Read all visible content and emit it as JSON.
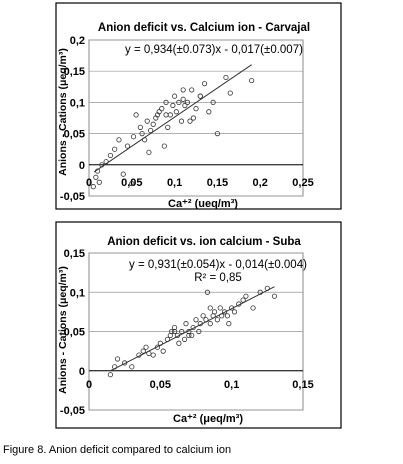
{
  "caption": "Figure 8. Anion deficit compared to calcium ion",
  "chart_data": [
    {
      "type": "scatter",
      "title": "Anion deficit vs. Calcium ion - Carvajal",
      "equation": "y = 0,934(±0.073)x - 0,017(±0.007)",
      "r2": "",
      "xlabel": "Ca⁺² (ueq/m³)",
      "ylabel": "Anions - Cations (μeq/m³)",
      "xlim": [
        0,
        0.25
      ],
      "ylim": [
        -0.05,
        0.2
      ],
      "xticks": [
        0,
        0.05,
        0.1,
        0.15,
        0.2,
        0.25
      ],
      "yticks": [
        -0.05,
        0,
        0.05,
        0.1,
        0.15,
        0.2
      ],
      "xtick_labels": [
        "0",
        "0,05",
        "0,1",
        "0,15",
        "0,2",
        "0,25"
      ],
      "ytick_labels": [
        "-0,05",
        "0",
        "0,05",
        "0,1",
        "0,15",
        "0,2"
      ],
      "grid": "horizontal",
      "trendline": {
        "slope": 0.934,
        "intercept": -0.017,
        "x_range": [
          0.006,
          0.19
        ]
      },
      "x": [
        0.005,
        0.008,
        0.01,
        0.012,
        0.015,
        0.02,
        0.025,
        0.03,
        0.035,
        0.04,
        0.045,
        0.05,
        0.052,
        0.055,
        0.06,
        0.062,
        0.065,
        0.068,
        0.07,
        0.072,
        0.075,
        0.078,
        0.08,
        0.082,
        0.085,
        0.088,
        0.09,
        0.092,
        0.095,
        0.098,
        0.1,
        0.102,
        0.105,
        0.108,
        0.11,
        0.112,
        0.115,
        0.118,
        0.12,
        0.122,
        0.125,
        0.13,
        0.135,
        0.14,
        0.145,
        0.15,
        0.16,
        0.165,
        0.19,
        0.09,
        0.11,
        0.13
      ],
      "y": [
        -0.035,
        -0.02,
        -0.01,
        -0.028,
        0.0,
        0.005,
        0.015,
        0.025,
        0.04,
        -0.015,
        0.03,
        -0.03,
        0.045,
        0.08,
        0.06,
        0.05,
        0.04,
        0.07,
        0.02,
        0.055,
        0.065,
        0.075,
        0.08,
        0.085,
        0.09,
        0.03,
        0.1,
        0.06,
        0.08,
        0.095,
        0.11,
        0.085,
        0.1,
        0.07,
        0.12,
        0.095,
        0.1,
        0.07,
        0.12,
        0.075,
        0.09,
        0.11,
        0.13,
        0.085,
        0.1,
        0.05,
        0.14,
        0.115,
        0.135,
        0.08,
        0.105,
        0.11
      ]
    },
    {
      "type": "scatter",
      "title": "Anion deficit vs. ion calcium - Suba",
      "equation": "y = 0,931(±0.054)x - 0,014(±0.004)",
      "r2": "R² = 0,85",
      "xlabel": "Ca⁺² (μeq/m³)",
      "ylabel": "Anions - Cations (μeq/m³)",
      "xlim": [
        0,
        0.15
      ],
      "ylim": [
        -0.05,
        0.15
      ],
      "xticks": [
        0,
        0.05,
        0.1,
        0.15
      ],
      "yticks": [
        -0.05,
        0,
        0.05,
        0.1,
        0.15
      ],
      "xtick_labels": [
        "0",
        "0,05",
        "0,1",
        "0,15"
      ],
      "ytick_labels": [
        "-0,05",
        "0",
        "0,05",
        "0,1",
        "0,15"
      ],
      "grid": "horizontal",
      "trendline": {
        "slope": 0.931,
        "intercept": -0.014,
        "x_range": [
          0.015,
          0.13
        ]
      },
      "x": [
        0.015,
        0.018,
        0.02,
        0.025,
        0.03,
        0.035,
        0.038,
        0.04,
        0.042,
        0.045,
        0.048,
        0.05,
        0.052,
        0.055,
        0.057,
        0.058,
        0.06,
        0.062,
        0.063,
        0.065,
        0.067,
        0.068,
        0.07,
        0.072,
        0.073,
        0.075,
        0.077,
        0.078,
        0.08,
        0.082,
        0.083,
        0.085,
        0.087,
        0.088,
        0.09,
        0.092,
        0.093,
        0.095,
        0.097,
        0.098,
        0.1,
        0.102,
        0.105,
        0.108,
        0.11,
        0.115,
        0.12,
        0.125,
        0.13,
        0.06,
        0.07,
        0.085
      ],
      "y": [
        -0.005,
        0.005,
        0.015,
        0.01,
        0.005,
        0.02,
        0.025,
        0.03,
        0.022,
        0.02,
        0.03,
        0.035,
        0.025,
        0.04,
        0.045,
        0.05,
        0.055,
        0.045,
        0.035,
        0.05,
        0.04,
        0.06,
        0.05,
        0.045,
        0.055,
        0.065,
        0.05,
        0.06,
        0.07,
        0.065,
        0.1,
        0.06,
        0.07,
        0.075,
        0.065,
        0.08,
        0.07,
        0.075,
        0.07,
        0.06,
        0.08,
        0.075,
        0.085,
        0.09,
        0.095,
        0.08,
        0.1,
        0.105,
        0.095,
        0.05,
        0.045,
        0.08
      ]
    }
  ]
}
